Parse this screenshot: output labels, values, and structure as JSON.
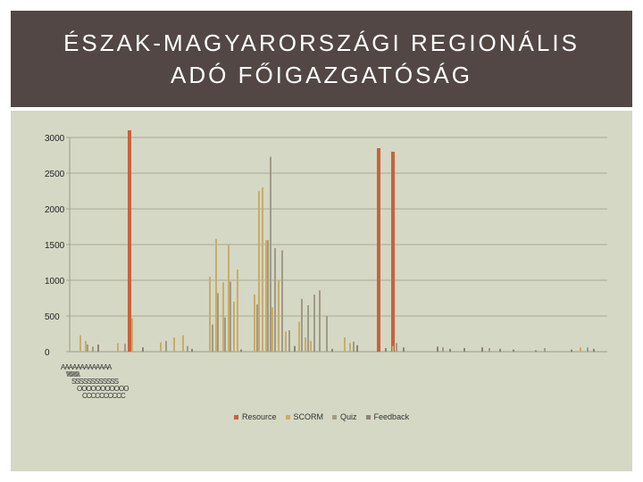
{
  "title_line1": "ÉSZAK-MAGYARORSZÁGI REGIONÁLIS",
  "title_line2": "ADÓ FŐIGAZGATÓSÁG",
  "chart_data": {
    "type": "bar",
    "title": "",
    "xlabel": "",
    "ylabel": "",
    "ylim": [
      0,
      3000
    ],
    "yticks": [
      0,
      500,
      1000,
      1500,
      2000,
      2500,
      3000
    ],
    "grid": true,
    "legend_position": "bottom",
    "colors": {
      "Resource": "#c8623c",
      "SCORM": "#c9ac6c",
      "Quiz": "#a09b86",
      "Feedback": "#8c8574"
    },
    "series": [
      {
        "name": "Resource",
        "color": "#c8623c",
        "values": [
          [
            145,
            3100
          ],
          [
            424,
            2850
          ],
          [
            440,
            2800
          ]
        ]
      },
      {
        "name": "SCORM",
        "color": "#c9ac6c",
        "values": [
          [
            90,
            230
          ],
          [
            96,
            150
          ],
          [
            132,
            120
          ],
          [
            148,
            470
          ],
          [
            180,
            130
          ],
          [
            195,
            200
          ],
          [
            205,
            230
          ],
          [
            235,
            1050
          ],
          [
            242,
            1580
          ],
          [
            250,
            970
          ],
          [
            256,
            1500
          ],
          [
            262,
            700
          ],
          [
            266,
            1150
          ],
          [
            285,
            800
          ],
          [
            290,
            2250
          ],
          [
            294,
            2300
          ],
          [
            298,
            1560
          ],
          [
            305,
            620
          ],
          [
            312,
            1000
          ],
          [
            320,
            280
          ],
          [
            335,
            420
          ],
          [
            342,
            200
          ],
          [
            348,
            150
          ],
          [
            386,
            200
          ],
          [
            392,
            120
          ],
          [
            440,
            80
          ],
          [
            650,
            60
          ]
        ]
      },
      {
        "name": "Quiz",
        "color": "#a09b86",
        "values": [
          [
            98,
            100
          ],
          [
            104,
            70
          ],
          [
            140,
            110
          ],
          [
            186,
            150
          ],
          [
            210,
            80
          ],
          [
            238,
            380
          ],
          [
            244,
            820
          ],
          [
            252,
            480
          ],
          [
            258,
            980
          ],
          [
            288,
            660
          ],
          [
            300,
            1560
          ],
          [
            303,
            2730
          ],
          [
            308,
            1450
          ],
          [
            316,
            1420
          ],
          [
            324,
            300
          ],
          [
            338,
            740
          ],
          [
            345,
            650
          ],
          [
            352,
            800
          ],
          [
            358,
            860
          ],
          [
            366,
            500
          ],
          [
            396,
            140
          ],
          [
            444,
            120
          ],
          [
            496,
            60
          ],
          [
            548,
            50
          ],
          [
            610,
            50
          ],
          [
            658,
            60
          ]
        ]
      },
      {
        "name": "Feedback",
        "color": "#8c8574",
        "values": [
          [
            110,
            100
          ],
          [
            160,
            60
          ],
          [
            215,
            40
          ],
          [
            270,
            30
          ],
          [
            330,
            80
          ],
          [
            372,
            40
          ],
          [
            400,
            90
          ],
          [
            432,
            50
          ],
          [
            452,
            60
          ],
          [
            490,
            70
          ],
          [
            504,
            40
          ],
          [
            520,
            50
          ],
          [
            540,
            60
          ],
          [
            560,
            40
          ],
          [
            575,
            30
          ],
          [
            600,
            20
          ],
          [
            640,
            30
          ],
          [
            665,
            40
          ]
        ]
      }
    ],
    "x_label_rows": [
      "AAAAAAAAAAAAA",
      "\\\\\\\\\\\\\\\\\\\\\\\\",
      "SSSSSSSSSSSS",
      "OOOOOOOOOOO",
      "CCCCCCCCCC"
    ]
  }
}
